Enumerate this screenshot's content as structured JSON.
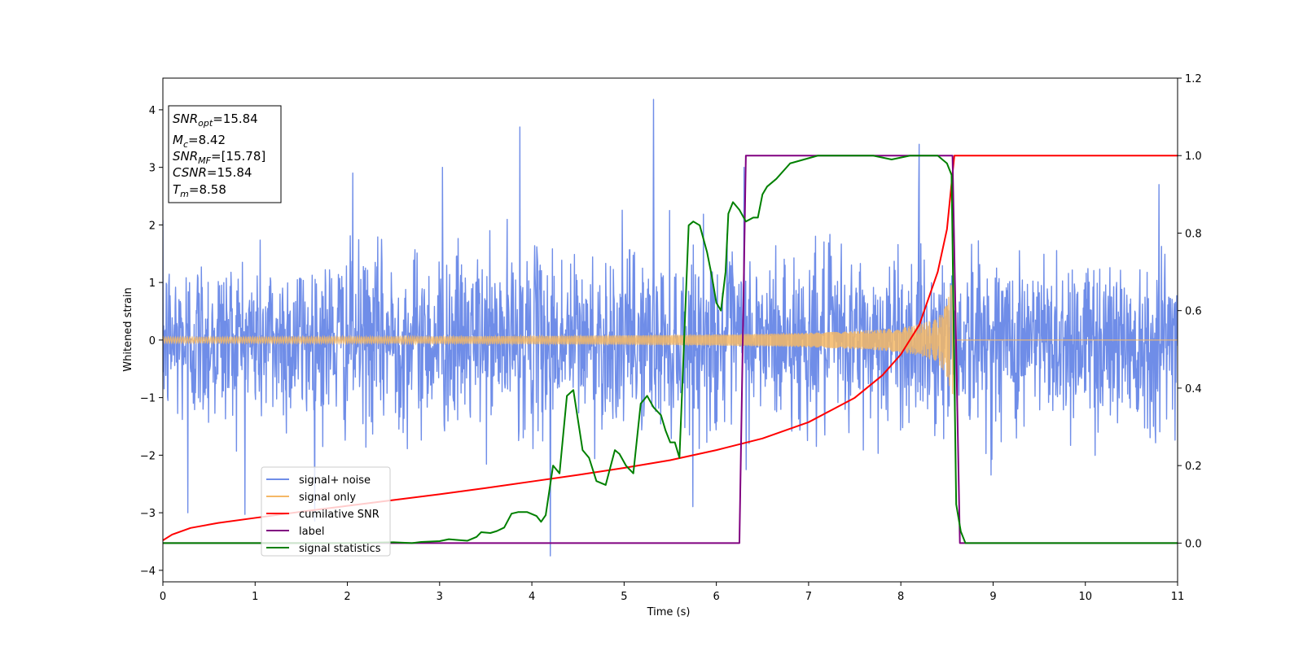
{
  "chart_data": {
    "type": "line",
    "title": "",
    "xlabel": "Time (s)",
    "ylabel": "Whitened strain",
    "y2label": "",
    "xlim": [
      0,
      11
    ],
    "ylim": [
      -4.2,
      4.55
    ],
    "y2lim": [
      -0.1,
      1.2
    ],
    "x_ticks": [
      0,
      1,
      2,
      3,
      4,
      5,
      6,
      7,
      8,
      9,
      10,
      11
    ],
    "y_ticks": [
      -4,
      -3,
      -2,
      -1,
      0,
      1,
      2,
      3,
      4
    ],
    "y_tick_labels": [
      "−4",
      "−3",
      "−2",
      "−1",
      "0",
      "1",
      "2",
      "3",
      "4"
    ],
    "y2_ticks": [
      0.0,
      0.2,
      0.4,
      0.6,
      0.8,
      1.0,
      1.2
    ],
    "y2_tick_labels": [
      "0.0",
      "0.2",
      "0.4",
      "0.6",
      "0.8",
      "1.0",
      "1.2"
    ],
    "grid": false,
    "legend_position": "lower-left",
    "info_box": {
      "lines": [
        {
          "base": "SNR",
          "sub": "opt",
          "value": "=15.84"
        },
        {
          "base": "M",
          "sub": "c",
          "value": "=8.42"
        },
        {
          "base": "SNR",
          "sub": "MF",
          "value": "=[15.78]"
        },
        {
          "base": "CSNR",
          "sub": "",
          "value": "=15.84"
        },
        {
          "base": "T",
          "sub": "m",
          "value": "=8.58"
        }
      ]
    },
    "series": [
      {
        "name": "signal+ noise",
        "color": "#6f8de8",
        "axis": "left",
        "kind": "noise",
        "noise_std": 0.75,
        "x_range": [
          0,
          11
        ],
        "spikes": [
          [
            5.32,
            4.18
          ],
          [
            3.87,
            3.7
          ],
          [
            8.2,
            3.4
          ],
          [
            10.8,
            2.7
          ],
          [
            4.2,
            -3.75
          ],
          [
            0.27,
            -3.0
          ],
          [
            2.06,
            2.9
          ],
          [
            3.03,
            3.0
          ],
          [
            6.3,
            3.0
          ]
        ]
      },
      {
        "name": "signal only",
        "color": "#f5b866",
        "axis": "left",
        "kind": "chirp",
        "t_merge": 8.58,
        "amplitude_start": 0.05,
        "amplitude_peak": 0.95,
        "x_range": [
          0,
          11
        ]
      },
      {
        "name": "cumilative SNR",
        "color": "#ff0000",
        "axis": "right",
        "x": [
          0,
          0.1,
          0.3,
          0.6,
          1.0,
          1.5,
          2.0,
          2.5,
          3.0,
          3.5,
          4.0,
          4.5,
          5.0,
          5.5,
          6.0,
          6.5,
          7.0,
          7.5,
          7.8,
          8.0,
          8.2,
          8.4,
          8.5,
          8.58,
          11
        ],
        "values": [
          0.007,
          0.022,
          0.039,
          0.052,
          0.065,
          0.081,
          0.096,
          0.111,
          0.126,
          0.142,
          0.159,
          0.176,
          0.194,
          0.214,
          0.24,
          0.27,
          0.312,
          0.375,
          0.433,
          0.487,
          0.563,
          0.7,
          0.81,
          1.0,
          1.0
        ]
      },
      {
        "name": "label",
        "color": "#800080",
        "axis": "right",
        "x": [
          0,
          6.25,
          6.32,
          8.56,
          8.64,
          11
        ],
        "values": [
          0,
          0,
          1,
          1,
          0,
          0
        ]
      },
      {
        "name": "signal statistics",
        "color": "#008000",
        "axis": "right",
        "x": [
          0,
          0.5,
          1.0,
          1.5,
          2.0,
          2.5,
          2.7,
          2.8,
          3.0,
          3.1,
          3.2,
          3.3,
          3.4,
          3.45,
          3.55,
          3.62,
          3.7,
          3.78,
          3.85,
          3.95,
          4.05,
          4.1,
          4.15,
          4.23,
          4.3,
          4.38,
          4.45,
          4.55,
          4.62,
          4.7,
          4.8,
          4.9,
          4.95,
          5.02,
          5.1,
          5.18,
          5.25,
          5.32,
          5.4,
          5.45,
          5.5,
          5.55,
          5.6,
          5.7,
          5.75,
          5.82,
          5.9,
          5.95,
          6.0,
          6.05,
          6.1,
          6.13,
          6.18,
          6.25,
          6.32,
          6.4,
          6.45,
          6.5,
          6.55,
          6.65,
          6.8,
          6.95,
          7.1,
          7.3,
          7.5,
          7.7,
          7.9,
          8.1,
          8.3,
          8.4,
          8.45,
          8.5,
          8.55,
          8.6,
          8.65,
          8.7,
          9.0,
          10.0,
          11.0
        ],
        "values": [
          0,
          0,
          0,
          0,
          0,
          0.002,
          0,
          0.003,
          0.005,
          0.01,
          0.008,
          0.006,
          0.016,
          0.028,
          0.026,
          0.031,
          0.04,
          0.076,
          0.08,
          0.08,
          0.07,
          0.055,
          0.072,
          0.2,
          0.18,
          0.38,
          0.395,
          0.24,
          0.22,
          0.16,
          0.15,
          0.24,
          0.23,
          0.2,
          0.18,
          0.36,
          0.38,
          0.35,
          0.33,
          0.29,
          0.26,
          0.26,
          0.22,
          0.82,
          0.83,
          0.82,
          0.75,
          0.69,
          0.62,
          0.6,
          0.7,
          0.85,
          0.88,
          0.86,
          0.83,
          0.84,
          0.84,
          0.9,
          0.92,
          0.94,
          0.98,
          0.99,
          1.0,
          1.0,
          1.0,
          1.0,
          0.99,
          1.0,
          1.0,
          1.0,
          0.99,
          0.98,
          0.95,
          0.1,
          0.03,
          0,
          0,
          0,
          0
        ]
      }
    ]
  }
}
